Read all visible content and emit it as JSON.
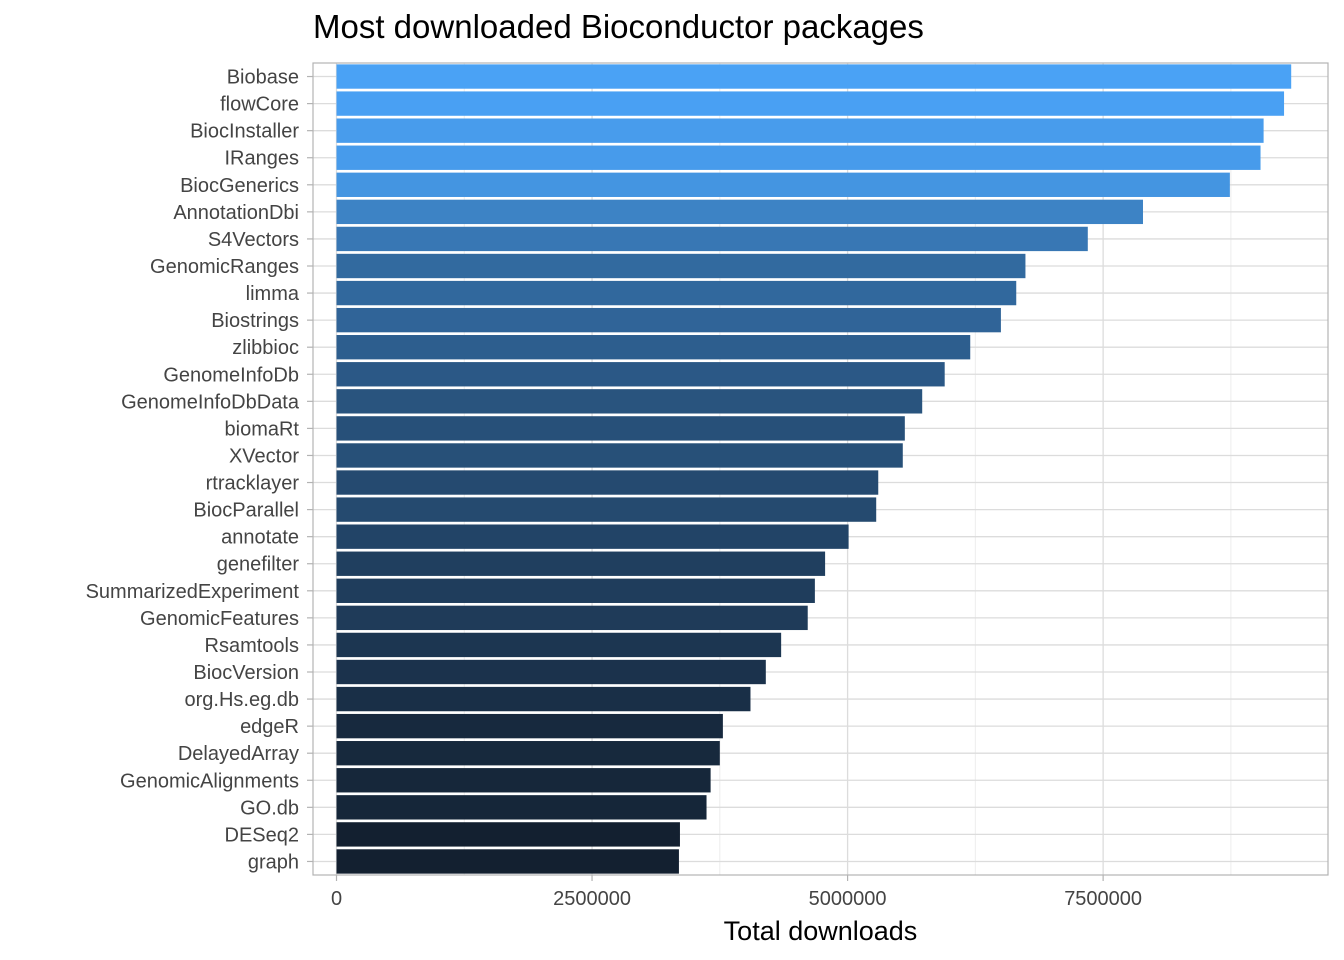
{
  "chart_data": {
    "type": "bar",
    "orientation": "horizontal",
    "title": "Most downloaded Bioconductor packages",
    "xlabel": "Total downloads",
    "ylabel": "",
    "xlim": [
      -230000,
      9700000
    ],
    "xticks": [
      0,
      2500000,
      5000000,
      7500000
    ],
    "xtick_labels": [
      "0",
      "2500000",
      "5000000",
      "7500000"
    ],
    "grid": true,
    "legend": "none",
    "color_low": "#132030",
    "color_high": "#4aa2f5",
    "categories": [
      "Biobase",
      "flowCore",
      "BiocInstaller",
      "IRanges",
      "BiocGenerics",
      "AnnotationDbi",
      "S4Vectors",
      "GenomicRanges",
      "limma",
      "Biostrings",
      "zlibbioc",
      "GenomeInfoDb",
      "GenomeInfoDbData",
      "biomaRt",
      "XVector",
      "rtracklayer",
      "BiocParallel",
      "annotate",
      "genefilter",
      "SummarizedExperiment",
      "GenomicFeatures",
      "Rsamtools",
      "BiocVersion",
      "org.Hs.eg.db",
      "edgeR",
      "DelayedArray",
      "GenomicAlignments",
      "GO.db",
      "DESeq2",
      "graph"
    ],
    "values": [
      9340000,
      9270000,
      9070000,
      9040000,
      8740000,
      7890000,
      7350000,
      6740000,
      6650000,
      6500000,
      6200000,
      5950000,
      5730000,
      5560000,
      5540000,
      5300000,
      5280000,
      5010000,
      4780000,
      4680000,
      4610000,
      4350000,
      4200000,
      4050000,
      3780000,
      3750000,
      3660000,
      3620000,
      3360000,
      3350000
    ]
  }
}
